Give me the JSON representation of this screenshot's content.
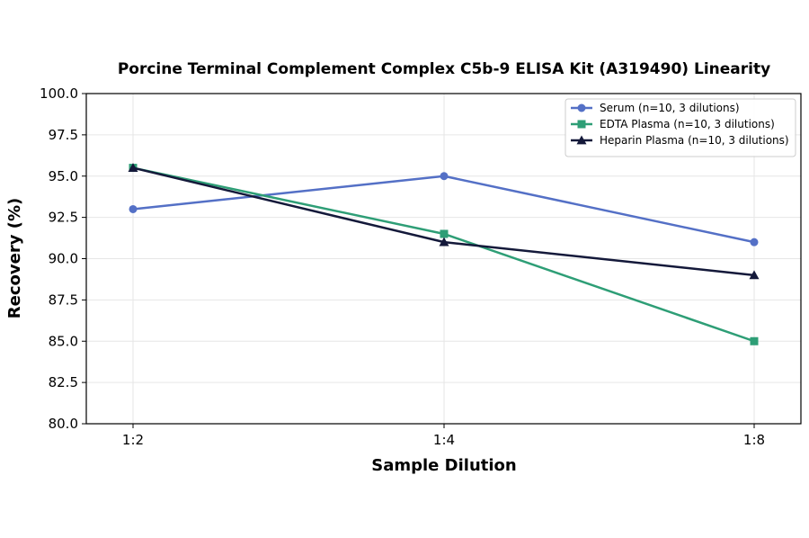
{
  "chart_data": {
    "type": "line",
    "title": "Porcine Terminal Complement Complex C5b-9 ELISA Kit (A319490) Linearity",
    "xlabel": "Sample Dilution",
    "ylabel": "Recovery (%)",
    "categories": [
      "1:2",
      "1:4",
      "1:8"
    ],
    "ylim": [
      80.0,
      100.0
    ],
    "yticks": [
      "80.0",
      "82.5",
      "85.0",
      "87.5",
      "90.0",
      "92.5",
      "95.0",
      "97.5",
      "100.0"
    ],
    "grid": true,
    "legend_position": "top-right",
    "series": [
      {
        "name": "Serum (n=10, 3 dilutions)",
        "values": [
          93.0,
          95.0,
          91.0
        ],
        "color": "#5470c6",
        "marker": "circle"
      },
      {
        "name": "EDTA Plasma (n=10, 3 dilutions)",
        "values": [
          95.5,
          91.5,
          85.0
        ],
        "color": "#2e9e76",
        "marker": "square"
      },
      {
        "name": "Heparin Plasma (n=10, 3 dilutions)",
        "values": [
          95.5,
          91.0,
          89.0
        ],
        "color": "#14193a",
        "marker": "triangle"
      }
    ]
  }
}
